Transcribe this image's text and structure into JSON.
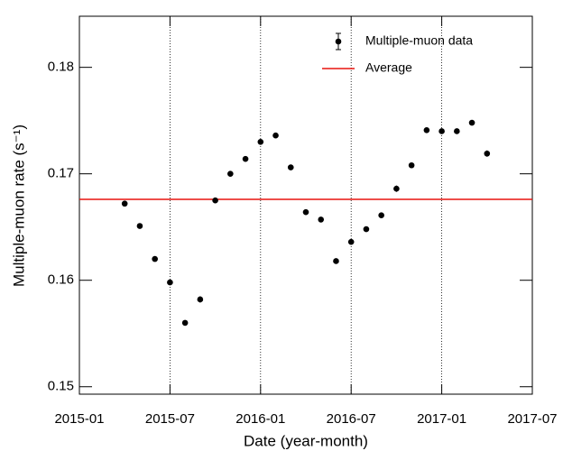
{
  "chart_data": {
    "type": "scatter",
    "xlabel": "Date (year-month)",
    "ylabel": "Multiple-muon rate (s⁻¹)",
    "xlim": [
      "2015-01",
      "2017-07"
    ],
    "xticks": [
      "2015-01",
      "2015-07",
      "2016-01",
      "2016-07",
      "2017-01",
      "2017-07"
    ],
    "ylim": [
      0.1493,
      0.1848
    ],
    "yticks": [
      0.15,
      0.16,
      0.17,
      0.18
    ],
    "xgrid": true,
    "legend": "upper right",
    "series": [
      {
        "name": "Multiple-muon data",
        "color": "#000000",
        "x": [
          "2015-04",
          "2015-05",
          "2015-06",
          "2015-07",
          "2015-08",
          "2015-09",
          "2015-10",
          "2015-11",
          "2015-12",
          "2016-01",
          "2016-02",
          "2016-03",
          "2016-04",
          "2016-05",
          "2016-06",
          "2016-07",
          "2016-08",
          "2016-09",
          "2016-10",
          "2016-11",
          "2016-12",
          "2017-01",
          "2017-02",
          "2017-03",
          "2017-04"
        ],
        "values": [
          0.1672,
          0.1651,
          0.162,
          0.1598,
          0.156,
          0.1582,
          0.1675,
          0.17,
          0.1714,
          0.173,
          0.1736,
          0.1706,
          0.1664,
          0.1657,
          0.1618,
          0.1636,
          0.1648,
          0.1661,
          0.1686,
          0.1708,
          0.1741,
          0.174,
          0.174,
          0.1748,
          0.1719
        ],
        "errors": [
          0.0002,
          0.0002,
          0.0002,
          0.0002,
          0.0002,
          0.0003,
          0.0002,
          0.0002,
          0.0002,
          0.0002,
          0.0002,
          0.0002,
          0.0002,
          0.0002,
          0.0002,
          0.0002,
          0.0002,
          0.0002,
          0.0003,
          0.0002,
          0.0002,
          0.0002,
          0.0002,
          0.0002,
          0.0003
        ]
      }
    ],
    "average": {
      "name": "Average",
      "value": 0.1676,
      "color": "#e8140f"
    }
  }
}
